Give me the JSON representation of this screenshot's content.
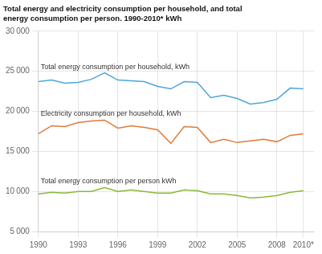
{
  "chart_data": {
    "type": "line",
    "title": "Total energy and electricity consumption per household, and total\nenergy consumption per person. 1990-2010* kWh",
    "x": [
      1990,
      1991,
      1992,
      1993,
      1994,
      1995,
      1996,
      1997,
      1998,
      1999,
      2000,
      2001,
      2002,
      2003,
      2004,
      2005,
      2006,
      2007,
      2008,
      2009,
      2010
    ],
    "series": [
      {
        "color": "#4da6d9",
        "values": [
          23700,
          23900,
          23500,
          23600,
          24000,
          24800,
          23900,
          23800,
          23700,
          23100,
          22800,
          23700,
          23600,
          21700,
          22000,
          21600,
          20900,
          21100,
          21500,
          22900,
          22800
        ]
      },
      {
        "color": "#e07b39",
        "values": [
          17200,
          18200,
          18100,
          18600,
          18800,
          18900,
          17900,
          18200,
          18000,
          17700,
          16000,
          18100,
          18000,
          16100,
          16500,
          16100,
          16300,
          16500,
          16200,
          17000,
          17200
        ]
      },
      {
        "color": "#8ab83a",
        "values": [
          9700,
          9900,
          9800,
          10000,
          10000,
          10500,
          10000,
          10200,
          10000,
          9800,
          9800,
          10200,
          10100,
          9700,
          9700,
          9500,
          9200,
          9300,
          9500,
          9900,
          10100
        ]
      }
    ],
    "annotations": [
      "Total energy consumption per household, kWh",
      "Electricity consumption per household, kWh",
      "Total energy consumption per person kWh"
    ],
    "xlim": [
      1990,
      2010.8
    ],
    "xticks": [
      1990,
      1993,
      1996,
      1999,
      2002,
      2005,
      2008,
      {
        "value": 2010,
        "label": "2010*"
      }
    ],
    "ylim": [
      5000,
      30000
    ],
    "yticks": [
      {
        "value": 5000,
        "label": "5 000"
      },
      {
        "value": 10000,
        "label": "10 000"
      },
      {
        "value": 15000,
        "label": "15 000"
      },
      {
        "value": 20000,
        "label": "20 000"
      },
      {
        "value": 25000,
        "label": "25 000"
      },
      {
        "value": 30000,
        "label": "30 000"
      }
    ],
    "grid": true
  }
}
